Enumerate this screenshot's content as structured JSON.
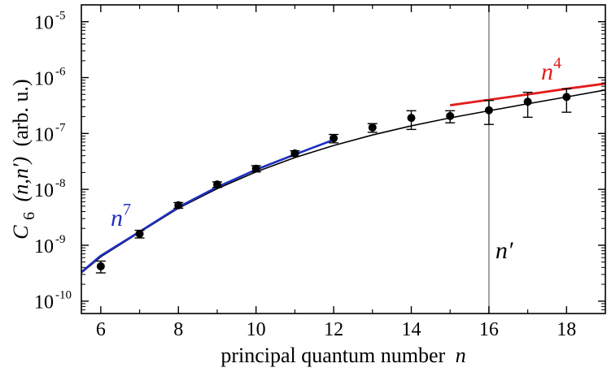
{
  "chart_data": {
    "type": "scatter",
    "xlabel": "principal quantum number",
    "xlabel_var": "n",
    "ylabel": {
      "symbol": "C",
      "subscript": "6",
      "args": "(n,n′)",
      "units": "(arb. u.)"
    },
    "x_ticks": [
      6,
      8,
      10,
      12,
      14,
      16,
      18
    ],
    "x_minor_ticks": [
      7,
      9,
      11,
      13,
      15,
      17
    ],
    "xlim": [
      5.5,
      19.0
    ],
    "y_scale": "log",
    "ylim": [
      6e-11,
      2e-05
    ],
    "y_ticks": [
      {
        "value": 1e-10,
        "base": "10",
        "exp": "-10"
      },
      {
        "value": 1e-09,
        "base": "10",
        "exp": "-9"
      },
      {
        "value": 1e-08,
        "base": "10",
        "exp": "-8"
      },
      {
        "value": 1e-07,
        "base": "10",
        "exp": "-7"
      },
      {
        "value": 1e-06,
        "base": "10",
        "exp": "-6"
      },
      {
        "value": 1e-05,
        "base": "10",
        "exp": "-5"
      }
    ],
    "data_points": [
      {
        "x": 6,
        "y": 4.2e-10,
        "y_low": 3.2e-10,
        "y_high": 5.2e-10
      },
      {
        "x": 7,
        "y": 1.6e-09,
        "y_low": 1.35e-09,
        "y_high": 1.85e-09
      },
      {
        "x": 8,
        "y": 5.2e-09,
        "y_low": 4.6e-09,
        "y_high": 5.8e-09
      },
      {
        "x": 9,
        "y": 1.22e-08,
        "y_low": 1.08e-08,
        "y_high": 1.36e-08
      },
      {
        "x": 10,
        "y": 2.35e-08,
        "y_low": 2.05e-08,
        "y_high": 2.65e-08
      },
      {
        "x": 11,
        "y": 4.4e-08,
        "y_low": 3.9e-08,
        "y_high": 4.9e-08
      },
      {
        "x": 12,
        "y": 8.2e-08,
        "y_low": 6.8e-08,
        "y_high": 9.6e-08
      },
      {
        "x": 13,
        "y": 1.28e-07,
        "y_low": 1.05e-07,
        "y_high": 1.5e-07
      },
      {
        "x": 14,
        "y": 1.9e-07,
        "y_low": 1.18e-07,
        "y_high": 2.55e-07
      },
      {
        "x": 15,
        "y": 2.05e-07,
        "y_low": 1.55e-07,
        "y_high": 2.55e-07
      },
      {
        "x": 16,
        "y": 2.6e-07,
        "y_low": 1.45e-07,
        "y_high": 3.9e-07
      },
      {
        "x": 17,
        "y": 3.7e-07,
        "y_low": 1.95e-07,
        "y_high": 5.45e-07
      },
      {
        "x": 18,
        "y": 4.5e-07,
        "y_low": 2.4e-07,
        "y_high": 6.3e-07
      }
    ],
    "curves": [
      {
        "label": "",
        "color": "#000000",
        "points": [
          [
            5.5,
            3.2e-10
          ],
          [
            6,
            6.2e-10
          ],
          [
            7,
            1.7e-09
          ],
          [
            8,
            4.6e-09
          ],
          [
            9,
            1.03e-08
          ],
          [
            10,
            2.05e-08
          ],
          [
            11,
            3.7e-08
          ],
          [
            12,
            6.1e-08
          ],
          [
            13,
            9.4e-08
          ],
          [
            14,
            1.37e-07
          ],
          [
            15,
            1.9e-07
          ],
          [
            16,
            2.55e-07
          ],
          [
            17,
            3.4e-07
          ],
          [
            18,
            4.5e-07
          ],
          [
            19,
            6e-07
          ]
        ]
      },
      {
        "label": "n",
        "label_exp": "7",
        "color": "#1f2fbf",
        "points": [
          [
            5.5,
            3.3e-10
          ],
          [
            6,
            6.5e-10
          ],
          [
            7,
            1.75e-09
          ],
          [
            8,
            4.8e-09
          ],
          [
            9,
            1.1e-08
          ],
          [
            10,
            2.25e-08
          ],
          [
            11,
            4.2e-08
          ],
          [
            12,
            7.7e-08
          ]
        ]
      },
      {
        "label": "n",
        "label_exp": "4",
        "color": "#e41b1b",
        "points": [
          [
            15,
            3.2e-07
          ],
          [
            16,
            4e-07
          ],
          [
            17,
            5e-07
          ],
          [
            18,
            6.3e-07
          ],
          [
            19,
            7.8e-07
          ]
        ]
      }
    ],
    "vline": {
      "x": 16,
      "label": "n′",
      "color": "#999999"
    },
    "colors": {
      "points": "#000000",
      "blue": "#1f2fbf",
      "red": "#e41b1b",
      "vline": "#999999"
    }
  }
}
